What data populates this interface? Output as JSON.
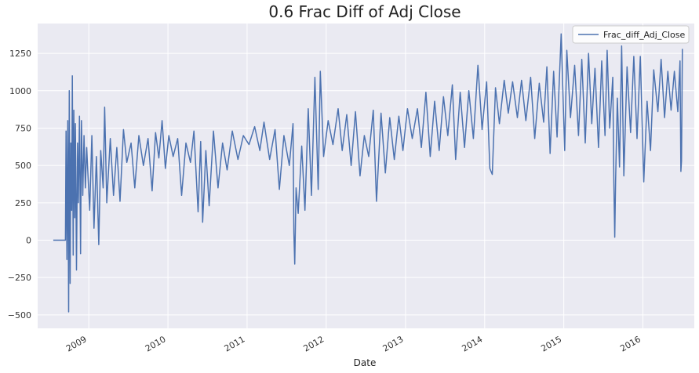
{
  "chart_data": {
    "type": "line",
    "title": "0.6 Frac Diff of Adj Close",
    "xlabel": "Date",
    "ylabel": "",
    "xlim": [
      "2008-05-10",
      "2016-08-25"
    ],
    "ylim": [
      -590,
      1450
    ],
    "x_ticks": [
      "2009",
      "2010",
      "2011",
      "2012",
      "2013",
      "2014",
      "2015",
      "2016"
    ],
    "y_ticks": [
      -500,
      -250,
      0,
      250,
      500,
      750,
      1000,
      1250
    ],
    "grid": true,
    "legend_position": "top-right",
    "colors": {
      "background": "#eaeaf2",
      "grid": "#ffffff",
      "series": "#4c72b0"
    },
    "series": [
      {
        "name": "Frac_diff_Adj_Close",
        "points": [
          [
            "2008-07-21",
            0
          ],
          [
            "2008-09-15",
            0
          ],
          [
            "2008-09-18",
            730
          ],
          [
            "2008-09-22",
            -130
          ],
          [
            "2008-09-26",
            800
          ],
          [
            "2008-09-30",
            -480
          ],
          [
            "2008-10-03",
            1000
          ],
          [
            "2008-10-07",
            -290
          ],
          [
            "2008-10-10",
            650
          ],
          [
            "2008-10-14",
            200
          ],
          [
            "2008-10-17",
            1100
          ],
          [
            "2008-10-21",
            -100
          ],
          [
            "2008-10-24",
            870
          ],
          [
            "2008-10-28",
            150
          ],
          [
            "2008-10-31",
            780
          ],
          [
            "2008-11-05",
            -200
          ],
          [
            "2008-11-10",
            650
          ],
          [
            "2008-11-14",
            250
          ],
          [
            "2008-11-19",
            830
          ],
          [
            "2008-11-24",
            -90
          ],
          [
            "2008-11-28",
            800
          ],
          [
            "2008-12-04",
            300
          ],
          [
            "2008-12-10",
            700
          ],
          [
            "2008-12-16",
            350
          ],
          [
            "2008-12-22",
            620
          ],
          [
            "2009-01-05",
            200
          ],
          [
            "2009-01-15",
            700
          ],
          [
            "2009-01-25",
            80
          ],
          [
            "2009-02-05",
            560
          ],
          [
            "2009-02-16",
            -30
          ],
          [
            "2009-02-25",
            600
          ],
          [
            "2009-03-08",
            350
          ],
          [
            "2009-03-15",
            890
          ],
          [
            "2009-03-25",
            250
          ],
          [
            "2009-04-10",
            680
          ],
          [
            "2009-04-25",
            300
          ],
          [
            "2009-05-10",
            620
          ],
          [
            "2009-05-25",
            260
          ],
          [
            "2009-06-10",
            740
          ],
          [
            "2009-06-25",
            520
          ],
          [
            "2009-07-15",
            650
          ],
          [
            "2009-08-01",
            350
          ],
          [
            "2009-08-20",
            700
          ],
          [
            "2009-09-10",
            500
          ],
          [
            "2009-10-01",
            680
          ],
          [
            "2009-10-20",
            330
          ],
          [
            "2009-11-05",
            720
          ],
          [
            "2009-11-20",
            550
          ],
          [
            "2009-12-05",
            800
          ],
          [
            "2009-12-20",
            480
          ],
          [
            "2010-01-05",
            700
          ],
          [
            "2010-01-25",
            560
          ],
          [
            "2010-02-15",
            680
          ],
          [
            "2010-03-05",
            300
          ],
          [
            "2010-03-25",
            650
          ],
          [
            "2010-04-15",
            520
          ],
          [
            "2010-05-01",
            730
          ],
          [
            "2010-05-20",
            190
          ],
          [
            "2010-06-01",
            660
          ],
          [
            "2010-06-10",
            120
          ],
          [
            "2010-06-25",
            600
          ],
          [
            "2010-07-10",
            230
          ],
          [
            "2010-07-30",
            730
          ],
          [
            "2010-08-20",
            350
          ],
          [
            "2010-09-10",
            650
          ],
          [
            "2010-10-01",
            470
          ],
          [
            "2010-10-25",
            730
          ],
          [
            "2010-11-20",
            540
          ],
          [
            "2010-12-15",
            700
          ],
          [
            "2011-01-10",
            640
          ],
          [
            "2011-02-05",
            760
          ],
          [
            "2011-03-01",
            600
          ],
          [
            "2011-03-20",
            790
          ],
          [
            "2011-04-15",
            540
          ],
          [
            "2011-05-10",
            740
          ],
          [
            "2011-05-30",
            340
          ],
          [
            "2011-06-20",
            700
          ],
          [
            "2011-07-15",
            500
          ],
          [
            "2011-08-01",
            780
          ],
          [
            "2011-08-05",
            50
          ],
          [
            "2011-08-09",
            -160
          ],
          [
            "2011-08-15",
            350
          ],
          [
            "2011-08-25",
            180
          ],
          [
            "2011-09-10",
            630
          ],
          [
            "2011-09-25",
            200
          ],
          [
            "2011-10-10",
            880
          ],
          [
            "2011-10-25",
            300
          ],
          [
            "2011-11-10",
            1090
          ],
          [
            "2011-11-25",
            340
          ],
          [
            "2011-12-05",
            1130
          ],
          [
            "2011-12-20",
            560
          ],
          [
            "2012-01-10",
            800
          ],
          [
            "2012-02-01",
            640
          ],
          [
            "2012-02-25",
            880
          ],
          [
            "2012-03-15",
            600
          ],
          [
            "2012-04-05",
            840
          ],
          [
            "2012-04-25",
            500
          ],
          [
            "2012-05-15",
            860
          ],
          [
            "2012-06-05",
            430
          ],
          [
            "2012-06-25",
            700
          ],
          [
            "2012-07-15",
            560
          ],
          [
            "2012-08-05",
            870
          ],
          [
            "2012-08-20",
            260
          ],
          [
            "2012-09-10",
            850
          ],
          [
            "2012-09-30",
            450
          ],
          [
            "2012-10-20",
            820
          ],
          [
            "2012-11-10",
            540
          ],
          [
            "2012-12-01",
            830
          ],
          [
            "2012-12-20",
            600
          ],
          [
            "2013-01-10",
            880
          ],
          [
            "2013-02-01",
            680
          ],
          [
            "2013-02-25",
            880
          ],
          [
            "2013-03-15",
            620
          ],
          [
            "2013-04-05",
            990
          ],
          [
            "2013-04-25",
            560
          ],
          [
            "2013-05-15",
            930
          ],
          [
            "2013-06-05",
            600
          ],
          [
            "2013-06-25",
            960
          ],
          [
            "2013-07-15",
            700
          ],
          [
            "2013-08-05",
            1040
          ],
          [
            "2013-08-20",
            540
          ],
          [
            "2013-09-10",
            990
          ],
          [
            "2013-09-30",
            620
          ],
          [
            "2013-10-20",
            1000
          ],
          [
            "2013-11-10",
            680
          ],
          [
            "2013-12-01",
            1170
          ],
          [
            "2013-12-20",
            740
          ],
          [
            "2014-01-10",
            1060
          ],
          [
            "2014-01-25",
            480
          ],
          [
            "2014-02-05",
            440
          ],
          [
            "2014-02-20",
            1020
          ],
          [
            "2014-03-10",
            780
          ],
          [
            "2014-04-01",
            1070
          ],
          [
            "2014-04-20",
            850
          ],
          [
            "2014-05-10",
            1060
          ],
          [
            "2014-06-01",
            820
          ],
          [
            "2014-06-20",
            1070
          ],
          [
            "2014-07-10",
            800
          ],
          [
            "2014-08-01",
            1090
          ],
          [
            "2014-08-20",
            680
          ],
          [
            "2014-09-10",
            1050
          ],
          [
            "2014-09-30",
            790
          ],
          [
            "2014-10-15",
            1160
          ],
          [
            "2014-10-30",
            580
          ],
          [
            "2014-11-15",
            1130
          ],
          [
            "2014-12-01",
            690
          ],
          [
            "2014-12-20",
            1380
          ],
          [
            "2015-01-05",
            600
          ],
          [
            "2015-01-15",
            1270
          ],
          [
            "2015-02-01",
            820
          ],
          [
            "2015-02-20",
            1170
          ],
          [
            "2015-03-10",
            700
          ],
          [
            "2015-03-25",
            1210
          ],
          [
            "2015-04-10",
            650
          ],
          [
            "2015-04-25",
            1250
          ],
          [
            "2015-05-10",
            780
          ],
          [
            "2015-05-25",
            1150
          ],
          [
            "2015-06-10",
            620
          ],
          [
            "2015-06-25",
            1200
          ],
          [
            "2015-07-10",
            700
          ],
          [
            "2015-07-20",
            1270
          ],
          [
            "2015-08-01",
            750
          ],
          [
            "2015-08-15",
            1090
          ],
          [
            "2015-08-20",
            380
          ],
          [
            "2015-08-24",
            20
          ],
          [
            "2015-08-28",
            400
          ],
          [
            "2015-09-05",
            950
          ],
          [
            "2015-09-15",
            490
          ],
          [
            "2015-09-25",
            1300
          ],
          [
            "2015-10-05",
            430
          ],
          [
            "2015-10-20",
            1160
          ],
          [
            "2015-11-05",
            720
          ],
          [
            "2015-11-20",
            1230
          ],
          [
            "2015-12-05",
            680
          ],
          [
            "2015-12-20",
            1230
          ],
          [
            "2016-01-05",
            390
          ],
          [
            "2016-01-20",
            930
          ],
          [
            "2016-02-05",
            600
          ],
          [
            "2016-02-20",
            1140
          ],
          [
            "2016-03-10",
            860
          ],
          [
            "2016-03-25",
            1210
          ],
          [
            "2016-04-10",
            820
          ],
          [
            "2016-04-25",
            1130
          ],
          [
            "2016-05-10",
            870
          ],
          [
            "2016-05-25",
            1130
          ],
          [
            "2016-06-10",
            860
          ],
          [
            "2016-06-20",
            1200
          ],
          [
            "2016-06-24",
            460
          ],
          [
            "2016-06-27",
            530
          ],
          [
            "2016-07-01",
            1280
          ]
        ]
      }
    ]
  }
}
